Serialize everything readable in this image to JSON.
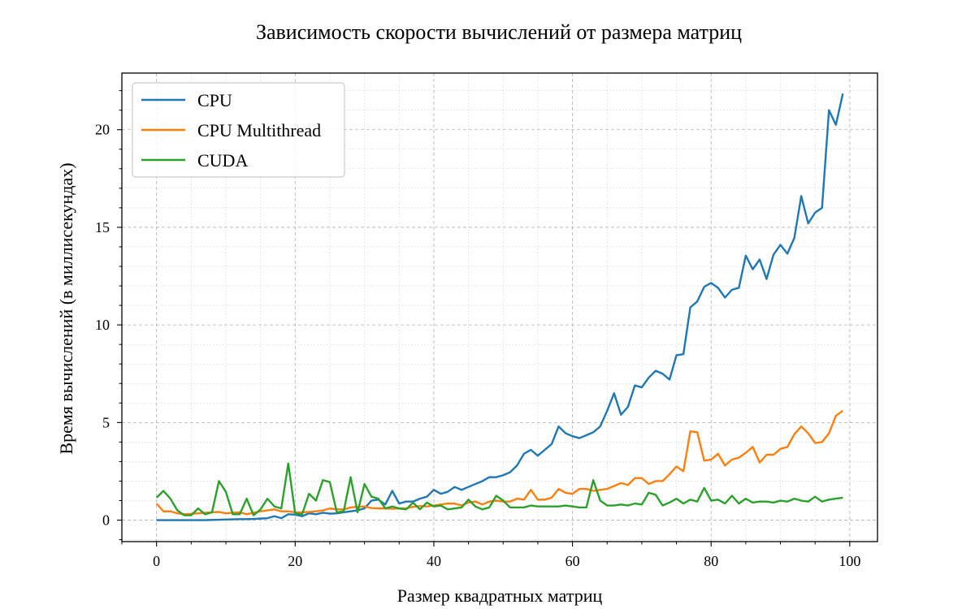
{
  "chart_data": {
    "type": "line",
    "title": "Зависимость скорости вычислений от размера матриц",
    "xlabel": "Размер квадратных матриц",
    "ylabel": "Время вычислений (в миллисекундах)",
    "xlim": [
      -5,
      104
    ],
    "ylim": [
      -1.1,
      22.9
    ],
    "xticks": [
      0,
      20,
      40,
      60,
      80,
      100
    ],
    "yticks": [
      0,
      5,
      10,
      15,
      20
    ],
    "grid": true,
    "minor_grid": true,
    "legend_position": "top-left",
    "x": [
      0,
      1,
      2,
      3,
      4,
      5,
      6,
      7,
      8,
      9,
      10,
      11,
      12,
      13,
      14,
      15,
      16,
      17,
      18,
      19,
      20,
      21,
      22,
      23,
      24,
      25,
      26,
      27,
      28,
      29,
      30,
      31,
      32,
      33,
      34,
      35,
      36,
      37,
      38,
      39,
      40,
      41,
      42,
      43,
      44,
      45,
      46,
      47,
      48,
      49,
      50,
      51,
      52,
      53,
      54,
      55,
      56,
      57,
      58,
      59,
      60,
      61,
      62,
      63,
      64,
      65,
      66,
      67,
      68,
      69,
      70,
      71,
      72,
      73,
      74,
      75,
      76,
      77,
      78,
      79,
      80,
      81,
      82,
      83,
      84,
      85,
      86,
      87,
      88,
      89,
      90,
      91,
      92,
      93,
      94,
      95,
      96,
      97,
      98,
      99
    ],
    "series": [
      {
        "name": "CPU",
        "color": "#1f77b4",
        "values": [
          0.0,
          0.0,
          0.0,
          0.0,
          0.0,
          0.0,
          0.0,
          0.0,
          0.01,
          0.02,
          0.03,
          0.04,
          0.05,
          0.05,
          0.06,
          0.08,
          0.1,
          0.2,
          0.1,
          0.3,
          0.28,
          0.2,
          0.35,
          0.3,
          0.38,
          0.33,
          0.35,
          0.4,
          0.45,
          0.5,
          0.6,
          1.0,
          1.05,
          0.8,
          1.5,
          0.85,
          0.95,
          0.95,
          1.1,
          1.2,
          1.55,
          1.35,
          1.45,
          1.7,
          1.55,
          1.7,
          1.85,
          2.0,
          2.2,
          2.2,
          2.3,
          2.45,
          2.8,
          3.4,
          3.6,
          3.3,
          3.6,
          3.9,
          4.8,
          4.45,
          4.3,
          4.2,
          4.35,
          4.5,
          4.8,
          5.6,
          6.5,
          5.4,
          5.8,
          6.9,
          6.8,
          7.3,
          7.65,
          7.5,
          7.2,
          8.45,
          8.5,
          10.9,
          11.2,
          11.95,
          12.15,
          11.9,
          11.4,
          11.8,
          11.9,
          13.55,
          12.85,
          13.35,
          12.35,
          13.6,
          14.1,
          13.65,
          14.45,
          16.6,
          15.2,
          15.75,
          16.0,
          21.0,
          20.25,
          21.85
        ]
      },
      {
        "name": "CPU Multithread",
        "color": "#ff7f0e",
        "values": [
          0.85,
          0.45,
          0.45,
          0.35,
          0.3,
          0.32,
          0.35,
          0.38,
          0.4,
          0.42,
          0.35,
          0.38,
          0.4,
          0.3,
          0.38,
          0.45,
          0.5,
          0.55,
          0.45,
          0.45,
          0.4,
          0.4,
          0.42,
          0.45,
          0.5,
          0.6,
          0.55,
          0.55,
          0.65,
          0.68,
          0.7,
          0.62,
          0.6,
          0.6,
          0.58,
          0.6,
          0.6,
          0.68,
          0.72,
          0.7,
          0.75,
          0.8,
          0.85,
          0.85,
          0.75,
          0.9,
          0.95,
          0.8,
          0.95,
          1.0,
          0.95,
          0.95,
          1.1,
          1.05,
          1.55,
          1.05,
          1.05,
          1.15,
          1.6,
          1.4,
          1.35,
          1.6,
          1.6,
          1.5,
          1.55,
          1.6,
          1.75,
          1.9,
          1.8,
          2.15,
          2.15,
          1.85,
          2.0,
          2.0,
          2.35,
          2.75,
          2.5,
          4.55,
          4.5,
          3.05,
          3.1,
          3.4,
          2.8,
          3.1,
          3.2,
          3.45,
          3.75,
          2.95,
          3.35,
          3.35,
          3.65,
          3.75,
          4.4,
          4.8,
          4.45,
          3.95,
          4.0,
          4.45,
          5.35,
          5.6
        ]
      },
      {
        "name": "CUDA",
        "color": "#2ca02c",
        "values": [
          1.15,
          1.5,
          1.1,
          0.5,
          0.25,
          0.25,
          0.6,
          0.3,
          0.4,
          2.0,
          1.45,
          0.3,
          0.3,
          1.1,
          0.25,
          0.55,
          1.1,
          0.7,
          0.6,
          2.9,
          0.35,
          0.3,
          1.35,
          1.0,
          2.05,
          1.95,
          0.4,
          0.45,
          2.2,
          0.4,
          1.85,
          1.2,
          1.1,
          0.6,
          0.7,
          0.6,
          0.55,
          0.9,
          0.55,
          0.9,
          0.7,
          0.75,
          0.55,
          0.6,
          0.65,
          1.05,
          0.7,
          0.55,
          0.65,
          1.25,
          1.0,
          0.65,
          0.65,
          0.65,
          0.75,
          0.7,
          0.7,
          0.7,
          0.7,
          0.75,
          0.7,
          0.65,
          0.65,
          2.05,
          1.0,
          0.75,
          0.75,
          0.8,
          0.75,
          0.85,
          0.8,
          1.4,
          1.3,
          0.75,
          0.9,
          1.1,
          0.85,
          1.05,
          0.95,
          1.65,
          1.0,
          1.05,
          0.85,
          1.25,
          0.85,
          1.1,
          0.9,
          0.95,
          0.95,
          0.9,
          1.0,
          0.95,
          1.1,
          1.0,
          0.95,
          1.2,
          0.95,
          1.05,
          1.1,
          1.15
        ]
      }
    ]
  }
}
